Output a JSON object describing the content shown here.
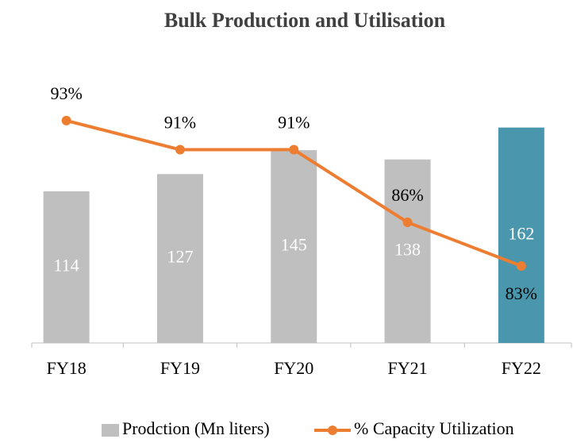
{
  "chart_data": {
    "type": "bar_line",
    "title": "Bulk Production and Utilisation",
    "categories": [
      "FY18",
      "FY19",
      "FY20",
      "FY21",
      "FY22"
    ],
    "ylim": [
      0,
      200
    ],
    "y2lim": [
      77.7,
      96
    ],
    "series": [
      {
        "name": "Prodction (Mn liters)",
        "type": "bar",
        "color": "#bfbfbf",
        "colors": [
          "#bfbfbf",
          "#bfbfbf",
          "#bfbfbf",
          "#bfbfbf",
          "#4a96ad"
        ],
        "values": [
          114,
          127,
          145,
          138,
          162
        ]
      },
      {
        "name": "% Capacity Utilization",
        "type": "line",
        "axis": "y2",
        "color": "#ed7d31",
        "values": [
          93,
          91,
          91,
          86,
          83
        ],
        "value_labels": [
          "93%",
          "91%",
          "91%",
          "86%",
          "83%"
        ]
      }
    ]
  }
}
